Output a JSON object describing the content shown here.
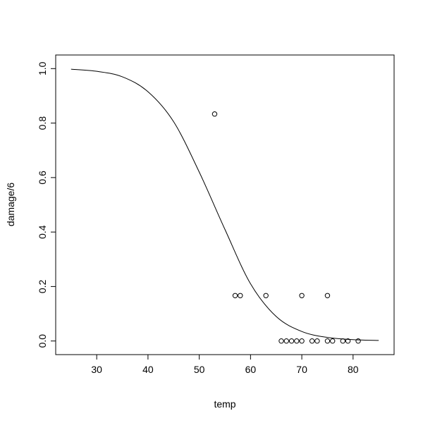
{
  "chart_data": {
    "type": "scatter",
    "xlabel": "temp",
    "ylabel": "damage/6",
    "xlim": [
      22,
      88
    ],
    "ylim": [
      -0.05,
      1.05
    ],
    "x_ticks": [
      30,
      40,
      50,
      60,
      70,
      80
    ],
    "y_ticks": [
      0.0,
      0.2,
      0.4,
      0.6,
      0.8,
      1.0
    ],
    "x_tick_labels": [
      "30",
      "40",
      "50",
      "60",
      "70",
      "80"
    ],
    "y_tick_labels": [
      "0.0",
      "0.2",
      "0.4",
      "0.6",
      "0.8",
      "1.0"
    ],
    "grid": false,
    "legend": "none",
    "points": [
      {
        "x": 53,
        "y": 0.8333
      },
      {
        "x": 57,
        "y": 0.1667
      },
      {
        "x": 58,
        "y": 0.1667
      },
      {
        "x": 63,
        "y": 0.1667
      },
      {
        "x": 66,
        "y": 0.0
      },
      {
        "x": 67,
        "y": 0.0
      },
      {
        "x": 68,
        "y": 0.0
      },
      {
        "x": 69,
        "y": 0.0
      },
      {
        "x": 70,
        "y": 0.0
      },
      {
        "x": 70,
        "y": 0.1667
      },
      {
        "x": 72,
        "y": 0.0
      },
      {
        "x": 73,
        "y": 0.0
      },
      {
        "x": 75,
        "y": 0.0
      },
      {
        "x": 75,
        "y": 0.1667
      },
      {
        "x": 76,
        "y": 0.0
      },
      {
        "x": 78,
        "y": 0.0
      },
      {
        "x": 79,
        "y": 0.0
      },
      {
        "x": 81,
        "y": 0.0
      }
    ],
    "fitted_curve": {
      "x": [
        25,
        30,
        35,
        40,
        45,
        50,
        55,
        60,
        65,
        70,
        75,
        80,
        85
      ],
      "y": [
        0.998,
        0.99,
        0.97,
        0.915,
        0.805,
        0.62,
        0.41,
        0.21,
        0.09,
        0.035,
        0.013,
        0.005,
        0.002
      ]
    },
    "colors": {
      "points": "#000000",
      "curve": "#000000",
      "frame": "#000000"
    }
  }
}
